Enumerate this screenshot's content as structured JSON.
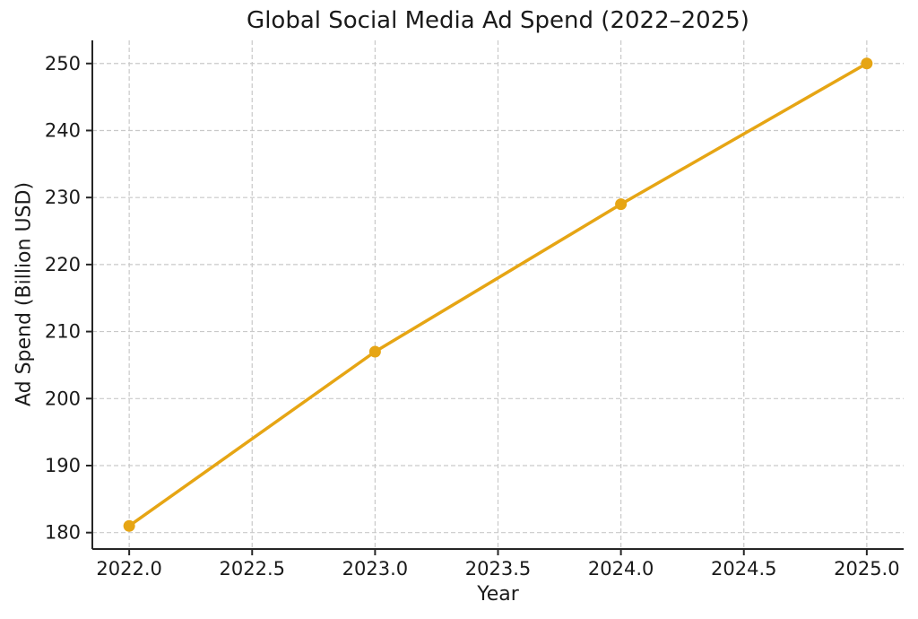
{
  "chart_data": {
    "type": "line",
    "title": "Global Social Media Ad Spend (2022–2025)",
    "xlabel": "Year",
    "ylabel": "Ad Spend (Billion USD)",
    "series": [
      {
        "name": "Ad Spend",
        "x": [
          2022,
          2023,
          2024,
          2025
        ],
        "values": [
          181,
          207,
          229,
          250
        ],
        "color": "#E6A514",
        "marker": "circle",
        "line_width": 3.5,
        "marker_radius": 6.5
      }
    ],
    "xlim": [
      2021.85,
      2025.15
    ],
    "ylim": [
      177.55,
      253.45
    ],
    "x_ticks": [
      2022.0,
      2022.5,
      2023.0,
      2023.5,
      2024.0,
      2024.5,
      2025.0
    ],
    "x_tick_labels": [
      "2022.0",
      "2022.5",
      "2023.0",
      "2023.5",
      "2024.0",
      "2024.5",
      "2025.0"
    ],
    "y_ticks": [
      180,
      190,
      200,
      210,
      220,
      230,
      240,
      250
    ],
    "y_tick_labels": [
      "180",
      "190",
      "200",
      "210",
      "220",
      "230",
      "240",
      "250"
    ],
    "grid": true,
    "grid_style": "dashed",
    "grid_color": "#c9c9c9",
    "spine_color": "#262626",
    "text_color": "#1a1a1a",
    "background_color": "#ffffff",
    "legend": false
  }
}
